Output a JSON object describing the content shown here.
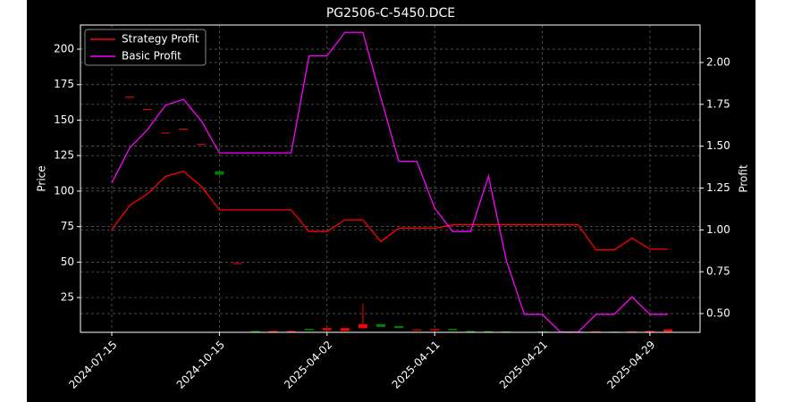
{
  "chart_data": {
    "type": "candlestick",
    "title": "PG2506-C-5450.DCE",
    "ylabel": "Price",
    "y2label": "Profit",
    "categories": [
      "2024-07-15",
      null,
      null,
      null,
      null,
      null,
      "2024-10-15",
      null,
      null,
      null,
      null,
      null,
      "2025-04-02",
      null,
      null,
      null,
      null,
      null,
      "2025-04-11",
      null,
      null,
      null,
      null,
      null,
      "2025-04-21",
      null,
      null,
      null,
      null,
      null,
      "2025-04-29",
      null
    ],
    "open": [
      null,
      166,
      157.3,
      140.8,
      143.5,
      132.8,
      114,
      48.7,
      1.5,
      1,
      1,
      3,
      2,
      1.5,
      3.5,
      6.2,
      4.9,
      2,
      2,
      3,
      1.5,
      1.3,
      1.2,
      null,
      1.2,
      null,
      1,
      0.8,
      1,
      0.8,
      0.8,
      1
    ],
    "high": [
      null,
      166.5,
      157.8,
      141.2,
      144,
      133.2,
      114,
      49.2,
      1.5,
      1.5,
      1.5,
      3,
      3.5,
      3.5,
      20.5,
      6.2,
      4.9,
      2.5,
      2.8,
      3,
      1.5,
      1.3,
      1.2,
      null,
      1.2,
      null,
      1,
      1.2,
      1,
      1.2,
      1.5,
      2.5
    ],
    "low": [
      null,
      166,
      157.3,
      140.8,
      143.5,
      132.8,
      111.5,
      48.7,
      1,
      1,
      1,
      2,
      2,
      1.5,
      3.5,
      4.3,
      3.6,
      2,
      2,
      2,
      1,
      0.9,
      0.8,
      null,
      0.8,
      null,
      0.7,
      0.8,
      0.7,
      0.8,
      0.8,
      1
    ],
    "close": [
      null,
      166.5,
      157.8,
      141.2,
      144,
      133.2,
      111.5,
      49.2,
      1,
      1.5,
      1.5,
      2,
      3.5,
      3.5,
      6.2,
      4.3,
      3.6,
      2.5,
      2.8,
      2,
      1,
      0.9,
      0.8,
      null,
      0.8,
      null,
      0.7,
      1.2,
      0.7,
      1.2,
      1.5,
      2.5
    ],
    "up_color": "#ff0000",
    "down_color": "#008000",
    "series": [
      {
        "name": "Strategy Profit",
        "color": "#ff0000",
        "axis": "y2",
        "values": [
          1.0,
          1.146,
          1.216,
          1.32,
          1.35,
          1.26,
          1.12,
          1.12,
          1.12,
          1.12,
          1.12,
          0.99,
          0.99,
          1.06,
          1.06,
          0.93,
          1.01,
          1.01,
          1.01,
          1.03,
          1.03,
          1.03,
          1.03,
          1.03,
          1.03,
          1.03,
          1.03,
          0.88,
          0.88,
          0.95,
          0.885,
          0.885
        ]
      },
      {
        "name": "Basic Profit",
        "color": "#ff00ff",
        "axis": "y2",
        "values": [
          1.28,
          1.49,
          1.6,
          1.745,
          1.78,
          1.65,
          1.46,
          1.46,
          1.46,
          1.46,
          1.46,
          2.04,
          2.04,
          2.18,
          2.18,
          1.79,
          1.41,
          1.41,
          1.13,
          0.99,
          0.99,
          1.32,
          0.815,
          0.495,
          0.495,
          0.39,
          0.39,
          0.495,
          0.495,
          0.6,
          0.495,
          0.495
        ]
      }
    ],
    "ylim": [
      0.5,
      217
    ],
    "yticks": [
      25,
      50,
      75,
      100,
      125,
      150,
      175,
      200
    ],
    "y2lim": [
      0.388,
      2.224
    ],
    "y2ticks": [
      {
        "value": 0.5,
        "label": "0.50"
      },
      {
        "value": 0.75,
        "label": "0.75"
      },
      {
        "value": 1.0,
        "label": "1.00"
      },
      {
        "value": 1.25,
        "label": "1.25"
      },
      {
        "value": 1.5,
        "label": "1.50"
      },
      {
        "value": 1.75,
        "label": "1.75"
      },
      {
        "value": 2.0,
        "label": "2.00"
      }
    ],
    "grid": true,
    "legend": "upper-left"
  }
}
